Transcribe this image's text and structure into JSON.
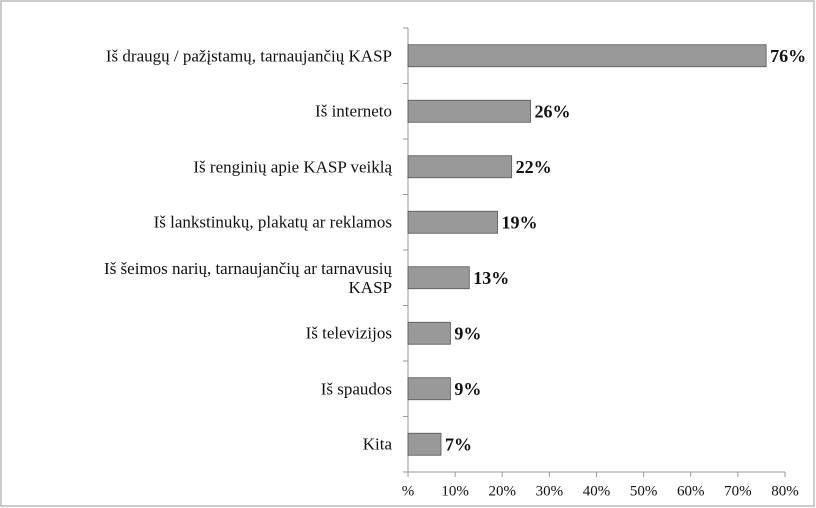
{
  "chart_data": {
    "type": "bar",
    "orientation": "horizontal",
    "categories": [
      "Iš draugų / pažįstamų, tarnaujančių KASP",
      "Iš interneto",
      "Iš renginių apie KASP veiklą",
      "Iš lankstinukų, plakatų ar reklamos",
      "Iš šeimos narių, tarnaujančių ar tarnavusių KASP",
      "Iš televizijos",
      "Iš spaudos",
      "Kita"
    ],
    "values": [
      76,
      26,
      22,
      19,
      13,
      9,
      9,
      7
    ],
    "value_labels": [
      "76%",
      "26%",
      "22%",
      "19%",
      "13%",
      "9%",
      "9%",
      "7%"
    ],
    "color": "#999999",
    "xlim": [
      0,
      80
    ],
    "xticks": [
      {
        "value": 0,
        "label": "%"
      },
      {
        "value": 10,
        "label": "10%"
      },
      {
        "value": 20,
        "label": "20%"
      },
      {
        "value": 30,
        "label": "30%"
      },
      {
        "value": 40,
        "label": "40%"
      },
      {
        "value": 50,
        "label": "50%"
      },
      {
        "value": 60,
        "label": "60%"
      },
      {
        "value": 70,
        "label": "70%"
      },
      {
        "value": 80,
        "label": "80%"
      }
    ],
    "grid": false
  }
}
